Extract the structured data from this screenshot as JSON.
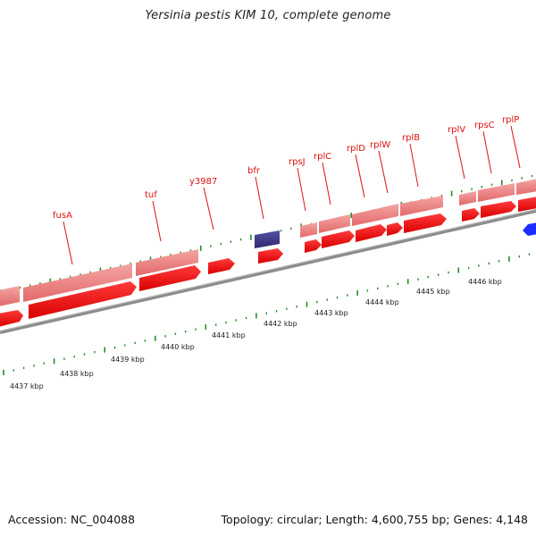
{
  "title": "Yersinia pestis KIM 10, complete genome",
  "footer": {
    "accession_label": "Accession:",
    "accession": "NC_004088",
    "topology_label": "Topology:",
    "topology": "circular",
    "length_label": "Length:",
    "length": "4,600,755 bp",
    "genes_label": "Genes:",
    "genes": "4,148"
  },
  "colors": {
    "gene_forward": "#ff1a1a",
    "gene_forward_light": "#f08a8a",
    "gene_highlight": "#3f3a86",
    "gene_other_strand": "#1a2cff",
    "backbone": "#8c8c8c",
    "tick": "#2a8a2a",
    "label": "#e01010"
  },
  "ruler_labels": [
    "4437 kbp",
    "4438 kbp",
    "4439 kbp",
    "4440 kbp",
    "4441 kbp",
    "4442 kbp",
    "4443 kbp",
    "4444 kbp",
    "4445 kbp",
    "4446 kbp"
  ],
  "gene_labels": [
    "fusA",
    "tuf",
    "y3987",
    "bfr",
    "rpsJ",
    "rplC",
    "rplD",
    "rplW",
    "rplB",
    "rplV",
    "rpsC",
    "rplP"
  ]
}
